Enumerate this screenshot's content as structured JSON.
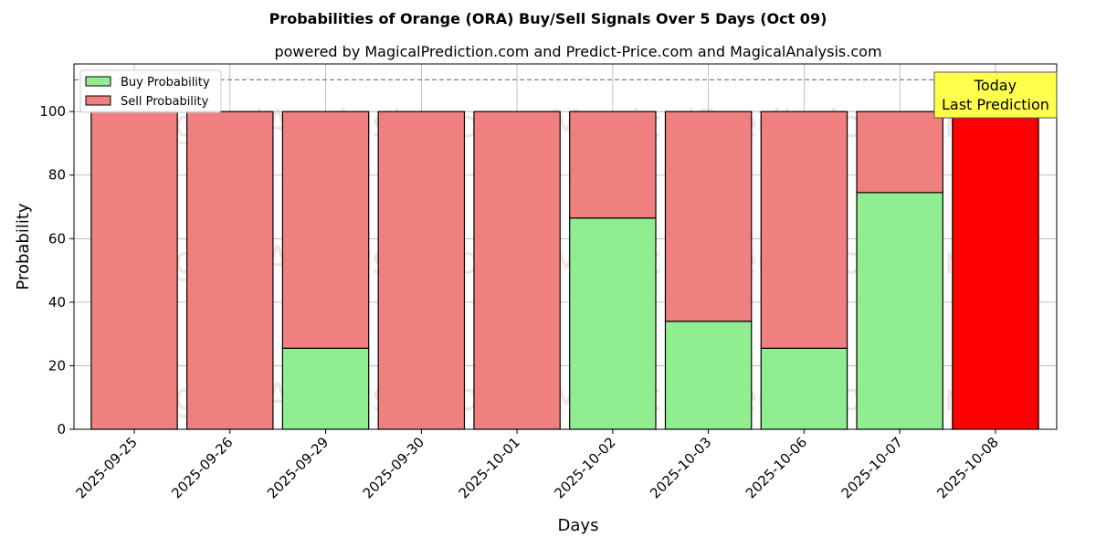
{
  "chart_data": {
    "type": "bar",
    "stacked": true,
    "title": "Probabilities of Orange (ORA) Buy/Sell Signals Over 5 Days (Oct 09)",
    "subtitle": "powered by MagicalPrediction.com and Predict-Price.com and MagicalAnalysis.com",
    "xlabel": "Days",
    "ylabel": "Probability",
    "ylim": [
      0,
      115
    ],
    "yticks": [
      0,
      20,
      40,
      60,
      80,
      100
    ],
    "grid": true,
    "legend_placement": "top-left",
    "categories": [
      "2025-09-25",
      "2025-09-26",
      "2025-09-29",
      "2025-09-30",
      "2025-10-01",
      "2025-10-02",
      "2025-10-03",
      "2025-10-06",
      "2025-10-07",
      "2025-10-08"
    ],
    "series": [
      {
        "name": "Buy Probability",
        "color": "#90ee90",
        "values": [
          0,
          0,
          25.5,
          0,
          0,
          66.5,
          34,
          25.5,
          74.5,
          0
        ]
      },
      {
        "name": "Sell Probability",
        "color": "#f08080",
        "values": [
          100,
          100,
          74.5,
          100,
          100,
          33.5,
          66,
          74.5,
          25.5,
          100
        ]
      }
    ],
    "highlight": {
      "index": 9,
      "color": "#ff0000"
    },
    "reference_line": {
      "y": 110,
      "style": "dashed",
      "color": "#808080"
    },
    "annotation": {
      "lines": [
        "Today",
        "Last Prediction"
      ],
      "background": "#ffff4d"
    },
    "watermarks": [
      "MagicalAnalysis.com",
      "MagicalPrediction.com",
      "MagicalAnalysis.com",
      "MagicalPrediction.com",
      "MagicalAnalysis.com",
      "MagicalPrediction.com"
    ]
  }
}
